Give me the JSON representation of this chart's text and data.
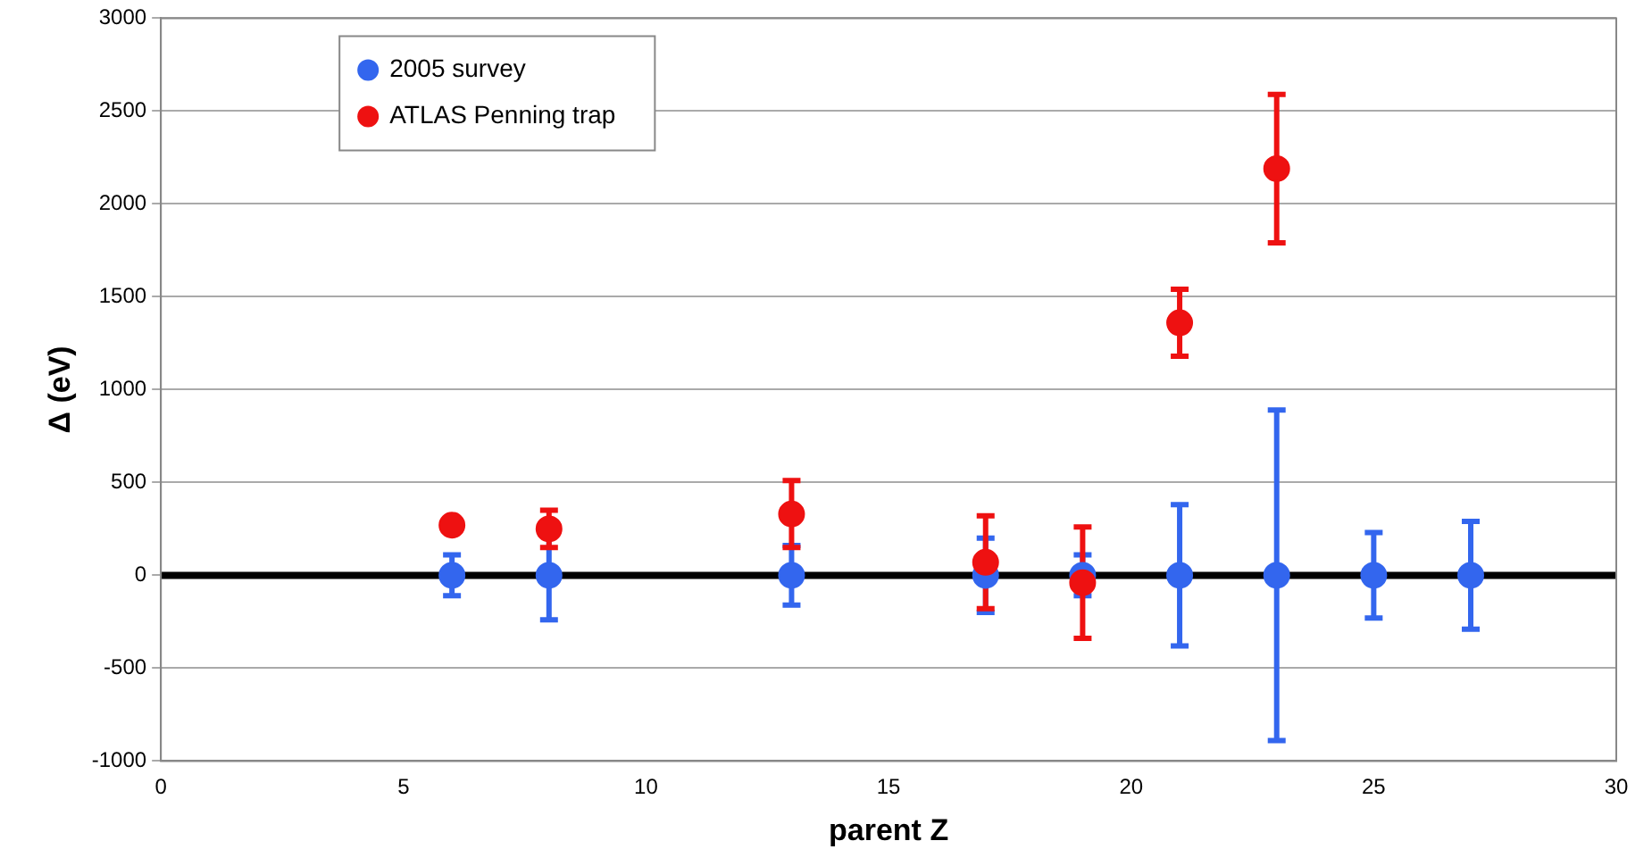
{
  "chart_data": {
    "type": "scatter",
    "xlabel": "parent Z",
    "ylabel": "Δ (eV)",
    "xlim": [
      0,
      30
    ],
    "xticks": [
      0,
      5,
      10,
      15,
      20,
      25,
      30
    ],
    "ylim": [
      -1000,
      3000
    ],
    "yticks": [
      -1000,
      -500,
      0,
      500,
      1000,
      1500,
      2000,
      2500,
      3000
    ],
    "grid": "y",
    "legend": "top left",
    "marker": "circle",
    "ref_lines": [
      {
        "axis": "y",
        "value": 0,
        "color": "#000000"
      }
    ],
    "series": [
      {
        "name": "2005 survey",
        "color": "#3366ee",
        "x": [
          6,
          8,
          13,
          17,
          19,
          21,
          23,
          25,
          27
        ],
        "values": [
          0,
          0,
          0,
          0,
          0,
          0,
          0,
          0,
          0
        ],
        "errors": [
          110,
          240,
          160,
          200,
          110,
          380,
          890,
          230,
          290
        ]
      },
      {
        "name": "ATLAS Penning trap",
        "color": "#ee1111",
        "x": [
          6,
          8,
          13,
          17,
          19,
          21,
          23
        ],
        "values": [
          270,
          250,
          330,
          70,
          -40,
          1360,
          2190
        ],
        "errors": [
          null,
          100,
          180,
          250,
          300,
          180,
          400
        ]
      }
    ]
  }
}
